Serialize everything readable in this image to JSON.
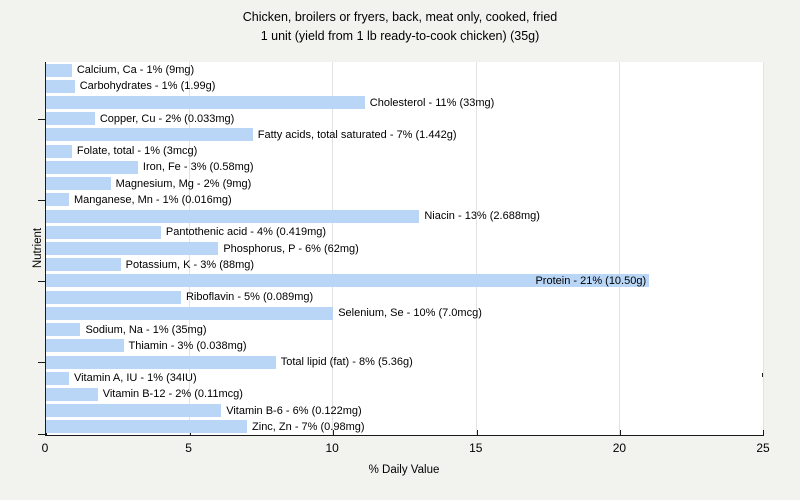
{
  "title": {
    "line1": "Chicken, broilers or fryers, back, meat only, cooked, fried",
    "line2": "1 unit (yield from 1 lb ready-to-cook chicken) (35g)"
  },
  "colors": {
    "background": "#f2f2ef",
    "plot_background": "#ffffff",
    "bar_fill": "#b9d6f7",
    "gridline": "#e3e3e3",
    "axis": "#1a1a1a",
    "text": "#000000"
  },
  "chart_data": {
    "type": "bar",
    "orientation": "horizontal",
    "title": "Chicken, broilers or fryers, back, meat only, cooked, fried — 1 unit (yield from 1 lb ready-to-cook chicken) (35g)",
    "xlabel": "% Daily Value",
    "ylabel": "Nutrient",
    "xlim": [
      0,
      25
    ],
    "x_ticks": [
      0,
      5,
      10,
      15,
      20,
      25
    ],
    "x_tick_labels": [
      "0",
      "5",
      "10",
      "15",
      "20",
      "25"
    ],
    "grid": "vertical-major",
    "y_tick_rows": [
      3,
      8,
      13,
      18
    ],
    "bars": [
      {
        "nutrient": "Calcium, Ca",
        "percent_label": "1%",
        "amount": "9mg",
        "label": "Calcium, Ca - 1% (9mg)",
        "value": 0.9,
        "label_inside": false
      },
      {
        "nutrient": "Carbohydrates",
        "percent_label": "1%",
        "amount": "1.99g",
        "label": "Carbohydrates - 1% (1.99g)",
        "value": 1.0,
        "label_inside": false
      },
      {
        "nutrient": "Cholesterol",
        "percent_label": "11%",
        "amount": "33mg",
        "label": "Cholesterol - 11% (33mg)",
        "value": 11.1,
        "label_inside": false
      },
      {
        "nutrient": "Copper, Cu",
        "percent_label": "2%",
        "amount": "0.033mg",
        "label": "Copper, Cu - 2% (0.033mg)",
        "value": 1.7,
        "label_inside": false
      },
      {
        "nutrient": "Fatty acids, total saturated",
        "percent_label": "7%",
        "amount": "1.442g",
        "label": "Fatty acids, total saturated - 7% (1.442g)",
        "value": 7.2,
        "label_inside": false
      },
      {
        "nutrient": "Folate, total",
        "percent_label": "1%",
        "amount": "3mcg",
        "label": "Folate, total - 1% (3mcg)",
        "value": 0.9,
        "label_inside": false
      },
      {
        "nutrient": "Iron, Fe",
        "percent_label": "3%",
        "amount": "0.58mg",
        "label": "Iron, Fe - 3% (0.58mg)",
        "value": 3.2,
        "label_inside": false
      },
      {
        "nutrient": "Magnesium, Mg",
        "percent_label": "2%",
        "amount": "9mg",
        "label": "Magnesium, Mg - 2% (9mg)",
        "value": 2.25,
        "label_inside": false
      },
      {
        "nutrient": "Manganese, Mn",
        "percent_label": "1%",
        "amount": "0.016mg",
        "label": "Manganese, Mn - 1% (0.016mg)",
        "value": 0.8,
        "label_inside": false
      },
      {
        "nutrient": "Niacin",
        "percent_label": "13%",
        "amount": "2.688mg",
        "label": "Niacin - 13% (2.688mg)",
        "value": 13.0,
        "label_inside": false
      },
      {
        "nutrient": "Pantothenic acid",
        "percent_label": "4%",
        "amount": "0.419mg",
        "label": "Pantothenic acid - 4% (0.419mg)",
        "value": 4.0,
        "label_inside": false
      },
      {
        "nutrient": "Phosphorus, P",
        "percent_label": "6%",
        "amount": "62mg",
        "label": "Phosphorus, P - 6% (62mg)",
        "value": 6.0,
        "label_inside": false
      },
      {
        "nutrient": "Potassium, K",
        "percent_label": "3%",
        "amount": "88mg",
        "label": "Potassium, K - 3% (88mg)",
        "value": 2.6,
        "label_inside": false
      },
      {
        "nutrient": "Protein",
        "percent_label": "21%",
        "amount": "10.50g",
        "label": "Protein - 21% (10.50g)",
        "value": 21.0,
        "label_inside": true
      },
      {
        "nutrient": "Riboflavin",
        "percent_label": "5%",
        "amount": "0.089mg",
        "label": "Riboflavin - 5% (0.089mg)",
        "value": 4.7,
        "label_inside": false
      },
      {
        "nutrient": "Selenium, Se",
        "percent_label": "10%",
        "amount": "7.0mcg",
        "label": "Selenium, Se - 10% (7.0mcg)",
        "value": 10.0,
        "label_inside": false
      },
      {
        "nutrient": "Sodium, Na",
        "percent_label": "1%",
        "amount": "35mg",
        "label": "Sodium, Na - 1% (35mg)",
        "value": 1.2,
        "label_inside": false
      },
      {
        "nutrient": "Thiamin",
        "percent_label": "3%",
        "amount": "0.038mg",
        "label": "Thiamin - 3% (0.038mg)",
        "value": 2.7,
        "label_inside": false
      },
      {
        "nutrient": "Total lipid (fat)",
        "percent_label": "8%",
        "amount": "5.36g",
        "label": "Total lipid (fat) - 8% (5.36g)",
        "value": 8.0,
        "label_inside": false
      },
      {
        "nutrient": "Vitamin A, IU",
        "percent_label": "1%",
        "amount": "34IU",
        "label": "Vitamin A, IU - 1% (34IU)",
        "value": 0.8,
        "label_inside": false
      },
      {
        "nutrient": "Vitamin B-12",
        "percent_label": "2%",
        "amount": "0.11mcg",
        "label": "Vitamin B-12 - 2% (0.11mcg)",
        "value": 1.8,
        "label_inside": false
      },
      {
        "nutrient": "Vitamin B-6",
        "percent_label": "6%",
        "amount": "0.122mg",
        "label": "Vitamin B-6 - 6% (0.122mg)",
        "value": 6.1,
        "label_inside": false
      },
      {
        "nutrient": "Zinc, Zn",
        "percent_label": "7%",
        "amount": "0.98mg",
        "label": "Zinc, Zn - 7% (0.98mg)",
        "value": 7.0,
        "label_inside": false
      }
    ]
  }
}
